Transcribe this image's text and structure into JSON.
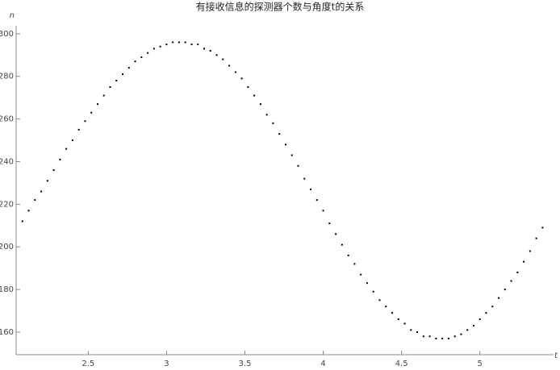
{
  "chart_data": {
    "type": "scatter",
    "title": "有接收信息的探测器个数与角度t的关系",
    "x_label": "t",
    "y_label": "n",
    "color": "#000000",
    "x": [
      2.08,
      2.12,
      2.16,
      2.2,
      2.24,
      2.28,
      2.32,
      2.36,
      2.4,
      2.44,
      2.48,
      2.52,
      2.56,
      2.6,
      2.64,
      2.68,
      2.72,
      2.76,
      2.8,
      2.84,
      2.88,
      2.92,
      2.96,
      3.0,
      3.04,
      3.08,
      3.12,
      3.16,
      3.2,
      3.24,
      3.28,
      3.32,
      3.36,
      3.4,
      3.44,
      3.48,
      3.52,
      3.56,
      3.6,
      3.64,
      3.68,
      3.72,
      3.76,
      3.8,
      3.84,
      3.88,
      3.92,
      3.96,
      4.0,
      4.04,
      4.08,
      4.12,
      4.16,
      4.2,
      4.24,
      4.28,
      4.32,
      4.36,
      4.4,
      4.44,
      4.48,
      4.52,
      4.56,
      4.6,
      4.64,
      4.68,
      4.72,
      4.76,
      4.8,
      4.84,
      4.88,
      4.92,
      4.96,
      5.0,
      5.04,
      5.08,
      5.12,
      5.16,
      5.2,
      5.24,
      5.28,
      5.32,
      5.36,
      5.4
    ],
    "values": [
      212,
      217,
      222,
      226,
      231,
      236,
      241,
      246,
      250,
      255,
      259,
      263,
      267,
      271,
      275,
      278,
      281,
      284,
      287,
      289,
      291,
      293,
      294,
      295,
      296,
      296,
      296,
      295,
      295,
      293,
      292,
      290,
      288,
      285,
      282,
      279,
      275,
      271,
      267,
      262,
      258,
      253,
      248,
      243,
      238,
      232,
      227,
      222,
      217,
      211,
      206,
      201,
      196,
      192,
      187,
      183,
      179,
      175,
      172,
      169,
      166,
      164,
      161,
      160,
      158,
      158,
      157,
      157,
      157,
      158,
      159,
      161,
      163,
      166,
      169,
      172,
      176,
      180,
      184,
      188,
      193,
      198,
      204,
      209
    ],
    "xlim": [
      2.04,
      5.47
    ],
    "ylim": [
      149.4,
      302.6
    ],
    "xticks": [
      2.5,
      3.0,
      3.5,
      4.0,
      4.5,
      5.0
    ],
    "yticks": [
      160,
      180,
      200,
      220,
      240,
      260,
      280,
      300
    ]
  }
}
